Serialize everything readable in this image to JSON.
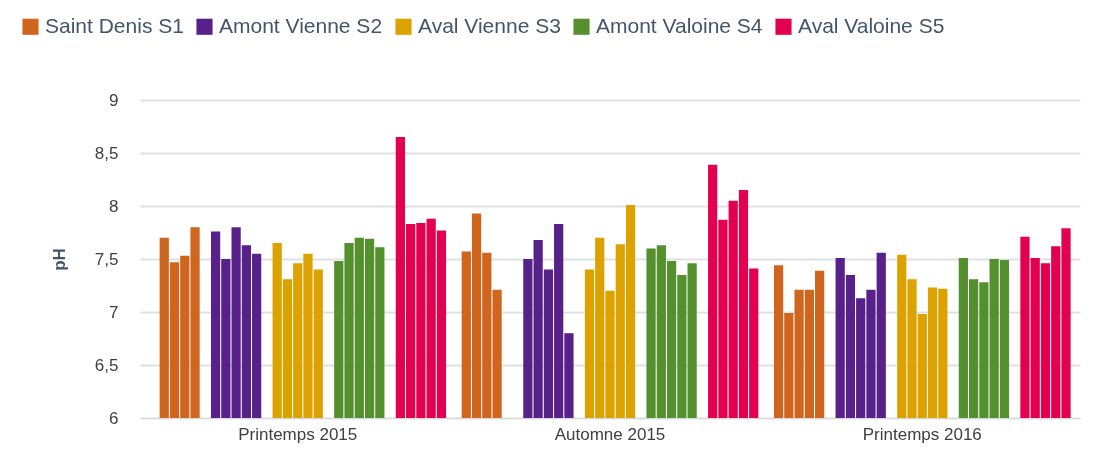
{
  "chart_data": {
    "type": "bar",
    "ylabel": "pH",
    "categories": [
      "Printemps 2015",
      "Automne 2015",
      "Printemps 2016"
    ],
    "series": [
      {
        "name": "Saint Denis S1",
        "color": "#d0651e",
        "values": [
          null,
          7.57,
          7.44
        ]
      },
      {
        "color": "#d0651e",
        "values": [
          7.7,
          7.93,
          6.99
        ]
      },
      {
        "color": "#d0651e",
        "values": [
          7.47,
          7.56,
          7.21
        ]
      },
      {
        "color": "#d0651e",
        "values": [
          7.53,
          7.21,
          7.21
        ]
      },
      {
        "color": "#d0651e",
        "values": [
          7.8,
          null,
          7.39
        ]
      },
      {
        "name": "Amont Vienne S2",
        "color": "#58218a",
        "values": [
          7.76,
          7.5,
          7.51
        ]
      },
      {
        "color": "#58218a",
        "values": [
          7.5,
          7.68,
          7.35
        ]
      },
      {
        "color": "#58218a",
        "values": [
          7.8,
          7.4,
          7.13
        ]
      },
      {
        "color": "#58218a",
        "values": [
          7.63,
          7.83,
          7.21
        ]
      },
      {
        "color": "#58218a",
        "values": [
          7.55,
          6.8,
          7.56
        ]
      },
      {
        "name": "Aval Vienne S3",
        "color": "#dca200",
        "values": [
          7.65,
          7.4,
          7.54
        ]
      },
      {
        "color": "#dca200",
        "values": [
          7.31,
          7.7,
          7.31
        ]
      },
      {
        "color": "#dca200",
        "values": [
          7.46,
          7.2,
          6.98
        ]
      },
      {
        "color": "#dca200",
        "values": [
          7.55,
          7.64,
          7.23
        ]
      },
      {
        "color": "#dca200",
        "values": [
          7.4,
          8.01,
          7.22
        ]
      },
      {
        "name": "Amont Valoine S4",
        "color": "#55902f",
        "values": [
          7.48,
          7.6,
          7.51
        ]
      },
      {
        "color": "#55902f",
        "values": [
          7.65,
          7.63,
          7.31
        ]
      },
      {
        "color": "#55902f",
        "values": [
          7.7,
          7.48,
          7.28
        ]
      },
      {
        "color": "#55902f",
        "values": [
          7.69,
          7.35,
          7.5
        ]
      },
      {
        "color": "#55902f",
        "values": [
          7.61,
          7.46,
          7.49
        ]
      },
      {
        "name": "Aval Valoine S5",
        "color": "#e2004f",
        "values": [
          8.65,
          8.39,
          7.71
        ]
      },
      {
        "color": "#e2004f",
        "values": [
          7.83,
          7.87,
          7.51
        ]
      },
      {
        "color": "#e2004f",
        "values": [
          7.84,
          8.05,
          7.46
        ]
      },
      {
        "color": "#e2004f",
        "values": [
          7.88,
          8.15,
          7.62
        ]
      },
      {
        "color": "#e2004f",
        "values": [
          7.77,
          7.41,
          7.79
        ]
      }
    ],
    "ylim": [
      6,
      9
    ],
    "yticks": [
      6,
      {
        "value": 6.5,
        "label": "6,5"
      },
      7,
      {
        "value": 7.5,
        "label": "7,5"
      },
      8,
      {
        "value": 8.5,
        "label": "8,5"
      },
      9
    ],
    "grid": "y",
    "legend": "top"
  }
}
